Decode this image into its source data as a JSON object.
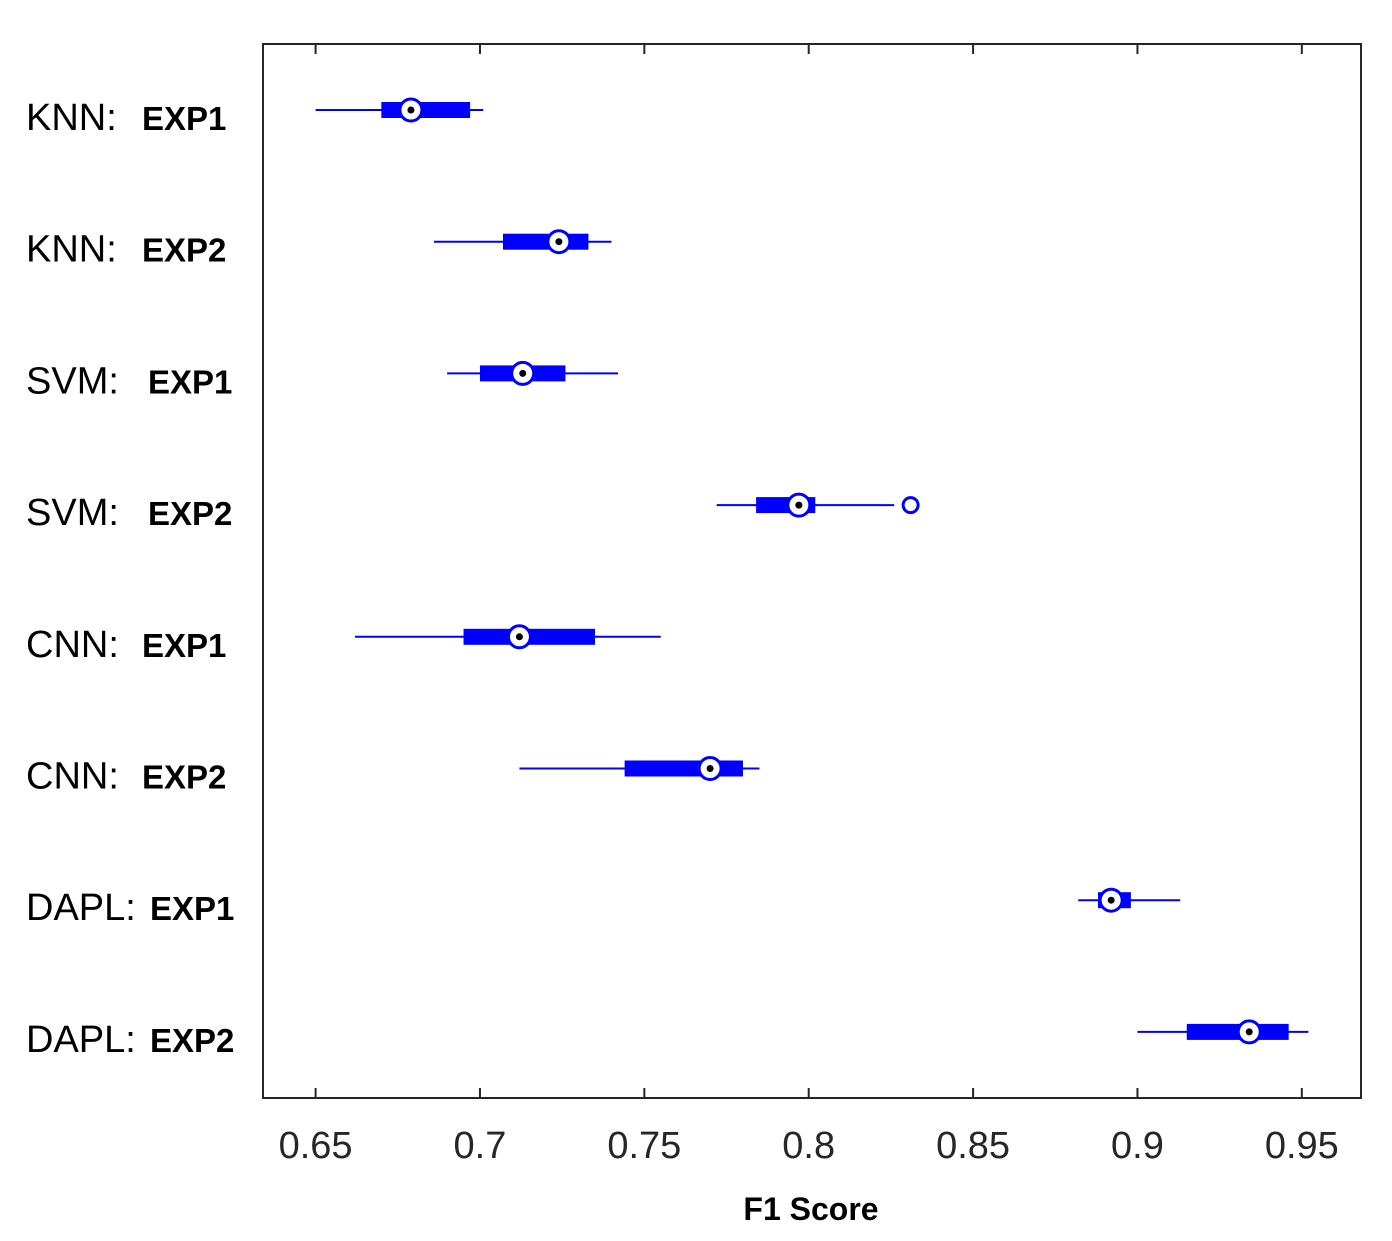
{
  "chart_data": {
    "type": "box",
    "orientation": "horizontal",
    "xlabel": "F1 Score",
    "ylabel": "",
    "title": "",
    "xlim": [
      0.634,
      0.968
    ],
    "xticks": [
      0.65,
      0.7,
      0.75,
      0.8,
      0.85,
      0.9,
      0.95
    ],
    "xtick_labels": [
      "0.65",
      "0.7",
      "0.75",
      "0.8",
      "0.85",
      "0.9",
      "0.95"
    ],
    "grid": false,
    "color": "#0000ff",
    "categories": [
      {
        "method": "KNN:",
        "exp": "EXP1",
        "whisker_low": 0.65,
        "q1": 0.67,
        "median": 0.679,
        "q3": 0.697,
        "whisker_high": 0.701,
        "outliers": []
      },
      {
        "method": "KNN:",
        "exp": "EXP2",
        "whisker_low": 0.686,
        "q1": 0.707,
        "median": 0.724,
        "q3": 0.733,
        "whisker_high": 0.74,
        "outliers": []
      },
      {
        "method": "SVM:",
        "exp": "EXP1",
        "whisker_low": 0.69,
        "q1": 0.7,
        "median": 0.713,
        "q3": 0.726,
        "whisker_high": 0.742,
        "outliers": []
      },
      {
        "method": "SVM:",
        "exp": "EXP2",
        "whisker_low": 0.772,
        "q1": 0.784,
        "median": 0.797,
        "q3": 0.802,
        "whisker_high": 0.826,
        "outliers": [
          0.831
        ]
      },
      {
        "method": "CNN:",
        "exp": "EXP1",
        "whisker_low": 0.662,
        "q1": 0.695,
        "median": 0.712,
        "q3": 0.735,
        "whisker_high": 0.755,
        "outliers": []
      },
      {
        "method": "CNN:",
        "exp": "EXP2",
        "whisker_low": 0.712,
        "q1": 0.744,
        "median": 0.77,
        "q3": 0.78,
        "whisker_high": 0.785,
        "outliers": []
      },
      {
        "method": "DAPL:",
        "exp": "EXP1",
        "whisker_low": 0.882,
        "q1": 0.888,
        "median": 0.892,
        "q3": 0.898,
        "whisker_high": 0.913,
        "outliers": []
      },
      {
        "method": "DAPL:",
        "exp": "EXP2",
        "whisker_low": 0.9,
        "q1": 0.915,
        "median": 0.934,
        "q3": 0.946,
        "whisker_high": 0.952,
        "outliers": []
      }
    ]
  }
}
